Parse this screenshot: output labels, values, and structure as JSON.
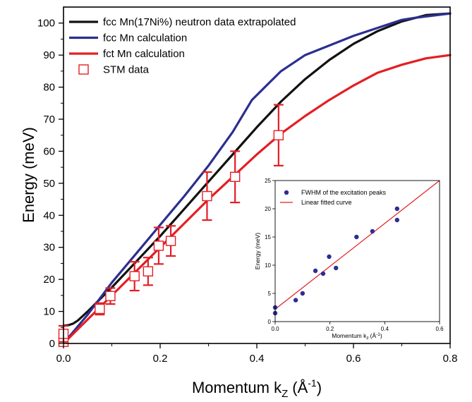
{
  "chart_data": [
    {
      "type": "line",
      "xlabel": "Momentum k",
      "xlabel_sub": "Z",
      "xlabel_unit": "(Å",
      "xlabel_sup": "-1",
      "xlabel_end": ")",
      "ylabel": "Energy (meV)",
      "xlim": [
        0,
        0.8
      ],
      "ylim": [
        0,
        105
      ],
      "x_ticks": [
        0.0,
        0.2,
        0.4,
        0.6,
        0.8
      ],
      "x_tick_labels": [
        "0.0",
        "0.2",
        "0.4",
        "0.6",
        "0.8"
      ],
      "y_ticks": [
        0,
        10,
        20,
        30,
        40,
        50,
        60,
        70,
        80,
        90,
        100
      ],
      "y_tick_labels": [
        "0",
        "10",
        "20",
        "30",
        "40",
        "50",
        "60",
        "70",
        "80",
        "90",
        "100"
      ],
      "grid": false,
      "legend_position": "top-left",
      "series": [
        {
          "name": "fcc Mn(17Ni%) neutron data extrapolated",
          "color": "#111111",
          "x": [
            0.0,
            0.01,
            0.02,
            0.03,
            0.05,
            0.1,
            0.15,
            0.2,
            0.25,
            0.3,
            0.35,
            0.4,
            0.45,
            0.5,
            0.55,
            0.6,
            0.65,
            0.7,
            0.75,
            0.8
          ],
          "y": [
            5.5,
            5.7,
            6.2,
            7.2,
            10.0,
            17.5,
            25.5,
            33.5,
            42.0,
            50.5,
            59.0,
            67.5,
            75.5,
            82.5,
            88.5,
            93.5,
            97.5,
            100.5,
            102.5,
            103.0
          ]
        },
        {
          "name": "fcc Mn calculation",
          "color": "#2b2f8f",
          "x": [
            0.0,
            0.05,
            0.1,
            0.15,
            0.2,
            0.25,
            0.3,
            0.35,
            0.39,
            0.45,
            0.5,
            0.55,
            0.6,
            0.65,
            0.7,
            0.73,
            0.8
          ],
          "y": [
            0.0,
            9.0,
            19.0,
            28.0,
            37.0,
            46.0,
            55.5,
            66.0,
            76.0,
            85.0,
            90.0,
            93.0,
            96.0,
            98.5,
            101.0,
            101.7,
            103.0
          ]
        },
        {
          "name": "fct Mn calculation",
          "color": "#e31e24",
          "x": [
            0.0,
            0.05,
            0.1,
            0.15,
            0.2,
            0.25,
            0.3,
            0.35,
            0.4,
            0.45,
            0.5,
            0.55,
            0.6,
            0.65,
            0.7,
            0.75,
            0.8
          ],
          "y": [
            0.0,
            7.5,
            15.0,
            22.5,
            30.0,
            37.5,
            45.0,
            52.0,
            59.0,
            65.5,
            71.0,
            76.0,
            80.5,
            84.5,
            87.0,
            89.0,
            90.0
          ]
        }
      ],
      "points": {
        "name": "STM data",
        "color": "#e31e24",
        "marker": "open-square",
        "data": [
          {
            "x": 0.0,
            "y": 0.5,
            "err": 0.5
          },
          {
            "x": 0.0,
            "y": 3.0,
            "err": 2.5
          },
          {
            "x": 0.075,
            "y": 10.8,
            "err": 1.8
          },
          {
            "x": 0.097,
            "y": 14.8,
            "err": 2.5
          },
          {
            "x": 0.147,
            "y": 21.0,
            "err": 4.5
          },
          {
            "x": 0.175,
            "y": 22.5,
            "err": 4.3
          },
          {
            "x": 0.197,
            "y": 30.5,
            "err": 5.7
          },
          {
            "x": 0.222,
            "y": 32.0,
            "err": 4.7
          },
          {
            "x": 0.297,
            "y": 46.0,
            "err": 7.5
          },
          {
            "x": 0.355,
            "y": 52.0,
            "err": 8.0
          },
          {
            "x": 0.445,
            "y": 65.0,
            "err": 9.5
          }
        ]
      }
    },
    {
      "type": "scatter",
      "xlabel": "Momentum k",
      "xlabel_sub": "z",
      "xlabel_unit": "(Å",
      "xlabel_sup": "-1",
      "xlabel_end": ")",
      "ylabel": "Energy (meV)",
      "xlim": [
        0,
        0.6
      ],
      "ylim": [
        0,
        25
      ],
      "x_ticks": [
        0.0,
        0.2,
        0.4,
        0.6
      ],
      "x_tick_labels": [
        "0.0",
        "0.2",
        "0.4",
        "0.6"
      ],
      "y_ticks": [
        0,
        5,
        10,
        15,
        20,
        25
      ],
      "y_tick_labels": [
        "0",
        "5",
        "10",
        "15",
        "20",
        "25"
      ],
      "grid": false,
      "legend_position": "top-left",
      "series": [
        {
          "name": "FWHM of the excitation peaks",
          "color": "#2b2f8f",
          "marker": "filled-circle",
          "x": [
            0.0,
            0.0,
            0.075,
            0.1,
            0.147,
            0.175,
            0.197,
            0.222,
            0.297,
            0.355,
            0.445,
            0.445
          ],
          "y": [
            1.5,
            2.5,
            3.8,
            5.0,
            9.0,
            8.5,
            11.5,
            9.5,
            15.0,
            16.0,
            20.0,
            18.0
          ]
        },
        {
          "name": "Linear fitted curve",
          "color": "#e31e24",
          "marker": "line",
          "x": [
            0.0,
            0.6
          ],
          "y": [
            2.2,
            25.0
          ]
        }
      ]
    }
  ]
}
